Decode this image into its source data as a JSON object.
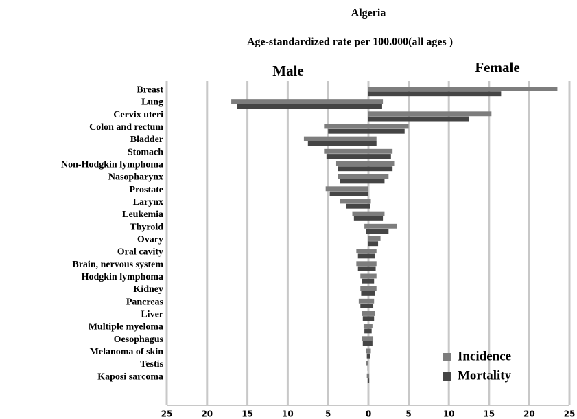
{
  "chart_data": {
    "type": "bar",
    "orientation": "horizontal",
    "title": "Algeria",
    "subtitle": "Age-standardized rate per 100.000(all ages )",
    "categories": [
      "Breast",
      "Lung",
      "Cervix uteri",
      "Colon and rectum",
      "Bladder",
      "Stomach",
      "Non-Hodgkin lymphoma",
      "Nasopharynx",
      "Prostate",
      "Larynx",
      "Leukemia",
      "Thyroid",
      "Ovary",
      "Oral cavity",
      "Brain, nervous system",
      "Hodgkin lymphoma",
      "Kidney",
      "Pancreas",
      "Liver",
      "Multiple myeloma",
      "Oesophagus",
      "Melanoma of skin",
      "Testis",
      "Kaposi sarcoma"
    ],
    "panels": [
      {
        "label": "Male",
        "xlim": [
          25,
          0
        ],
        "xticks": [
          25,
          20,
          15,
          10,
          5,
          0
        ]
      },
      {
        "label": "Female",
        "xlim": [
          0,
          25
        ],
        "xticks": [
          0,
          5,
          10,
          15,
          20,
          25
        ]
      }
    ],
    "series": [
      {
        "name": "Incidence",
        "color": "#7d7d7d",
        "values": [
          [
            null,
            17,
            null,
            5.5,
            8,
            5.5,
            4,
            3.8,
            5.3,
            3.5,
            2,
            0.5,
            null,
            1.5,
            1.5,
            1,
            1,
            1.2,
            0.8,
            0.6,
            0.8,
            0.3,
            0.3,
            0.2
          ],
          [
            23.5,
            1.8,
            15.3,
            5,
            1,
            3,
            3.2,
            2.5,
            null,
            0.3,
            2,
            3.5,
            1.5,
            1,
            1,
            1,
            1,
            0.7,
            0.8,
            0.5,
            0.6,
            0.3,
            null,
            0.1
          ]
        ]
      },
      {
        "name": "Mortality",
        "color": "#454545",
        "values": [
          [
            null,
            16.3,
            null,
            5,
            7.5,
            5.2,
            3.8,
            3.5,
            4.8,
            2.8,
            1.8,
            0.3,
            null,
            1.3,
            1.3,
            0.8,
            0.9,
            1,
            0.7,
            0.5,
            0.7,
            0.2,
            0.1,
            0.1
          ],
          [
            16.5,
            1.7,
            12.5,
            4.5,
            1,
            2.8,
            3,
            2,
            null,
            0.2,
            1.8,
            2.5,
            1.2,
            0.8,
            0.9,
            0.7,
            0.8,
            0.6,
            0.7,
            0.4,
            0.5,
            0.2,
            null,
            0.1
          ]
        ]
      }
    ],
    "grid": true,
    "legend": "lower right"
  }
}
